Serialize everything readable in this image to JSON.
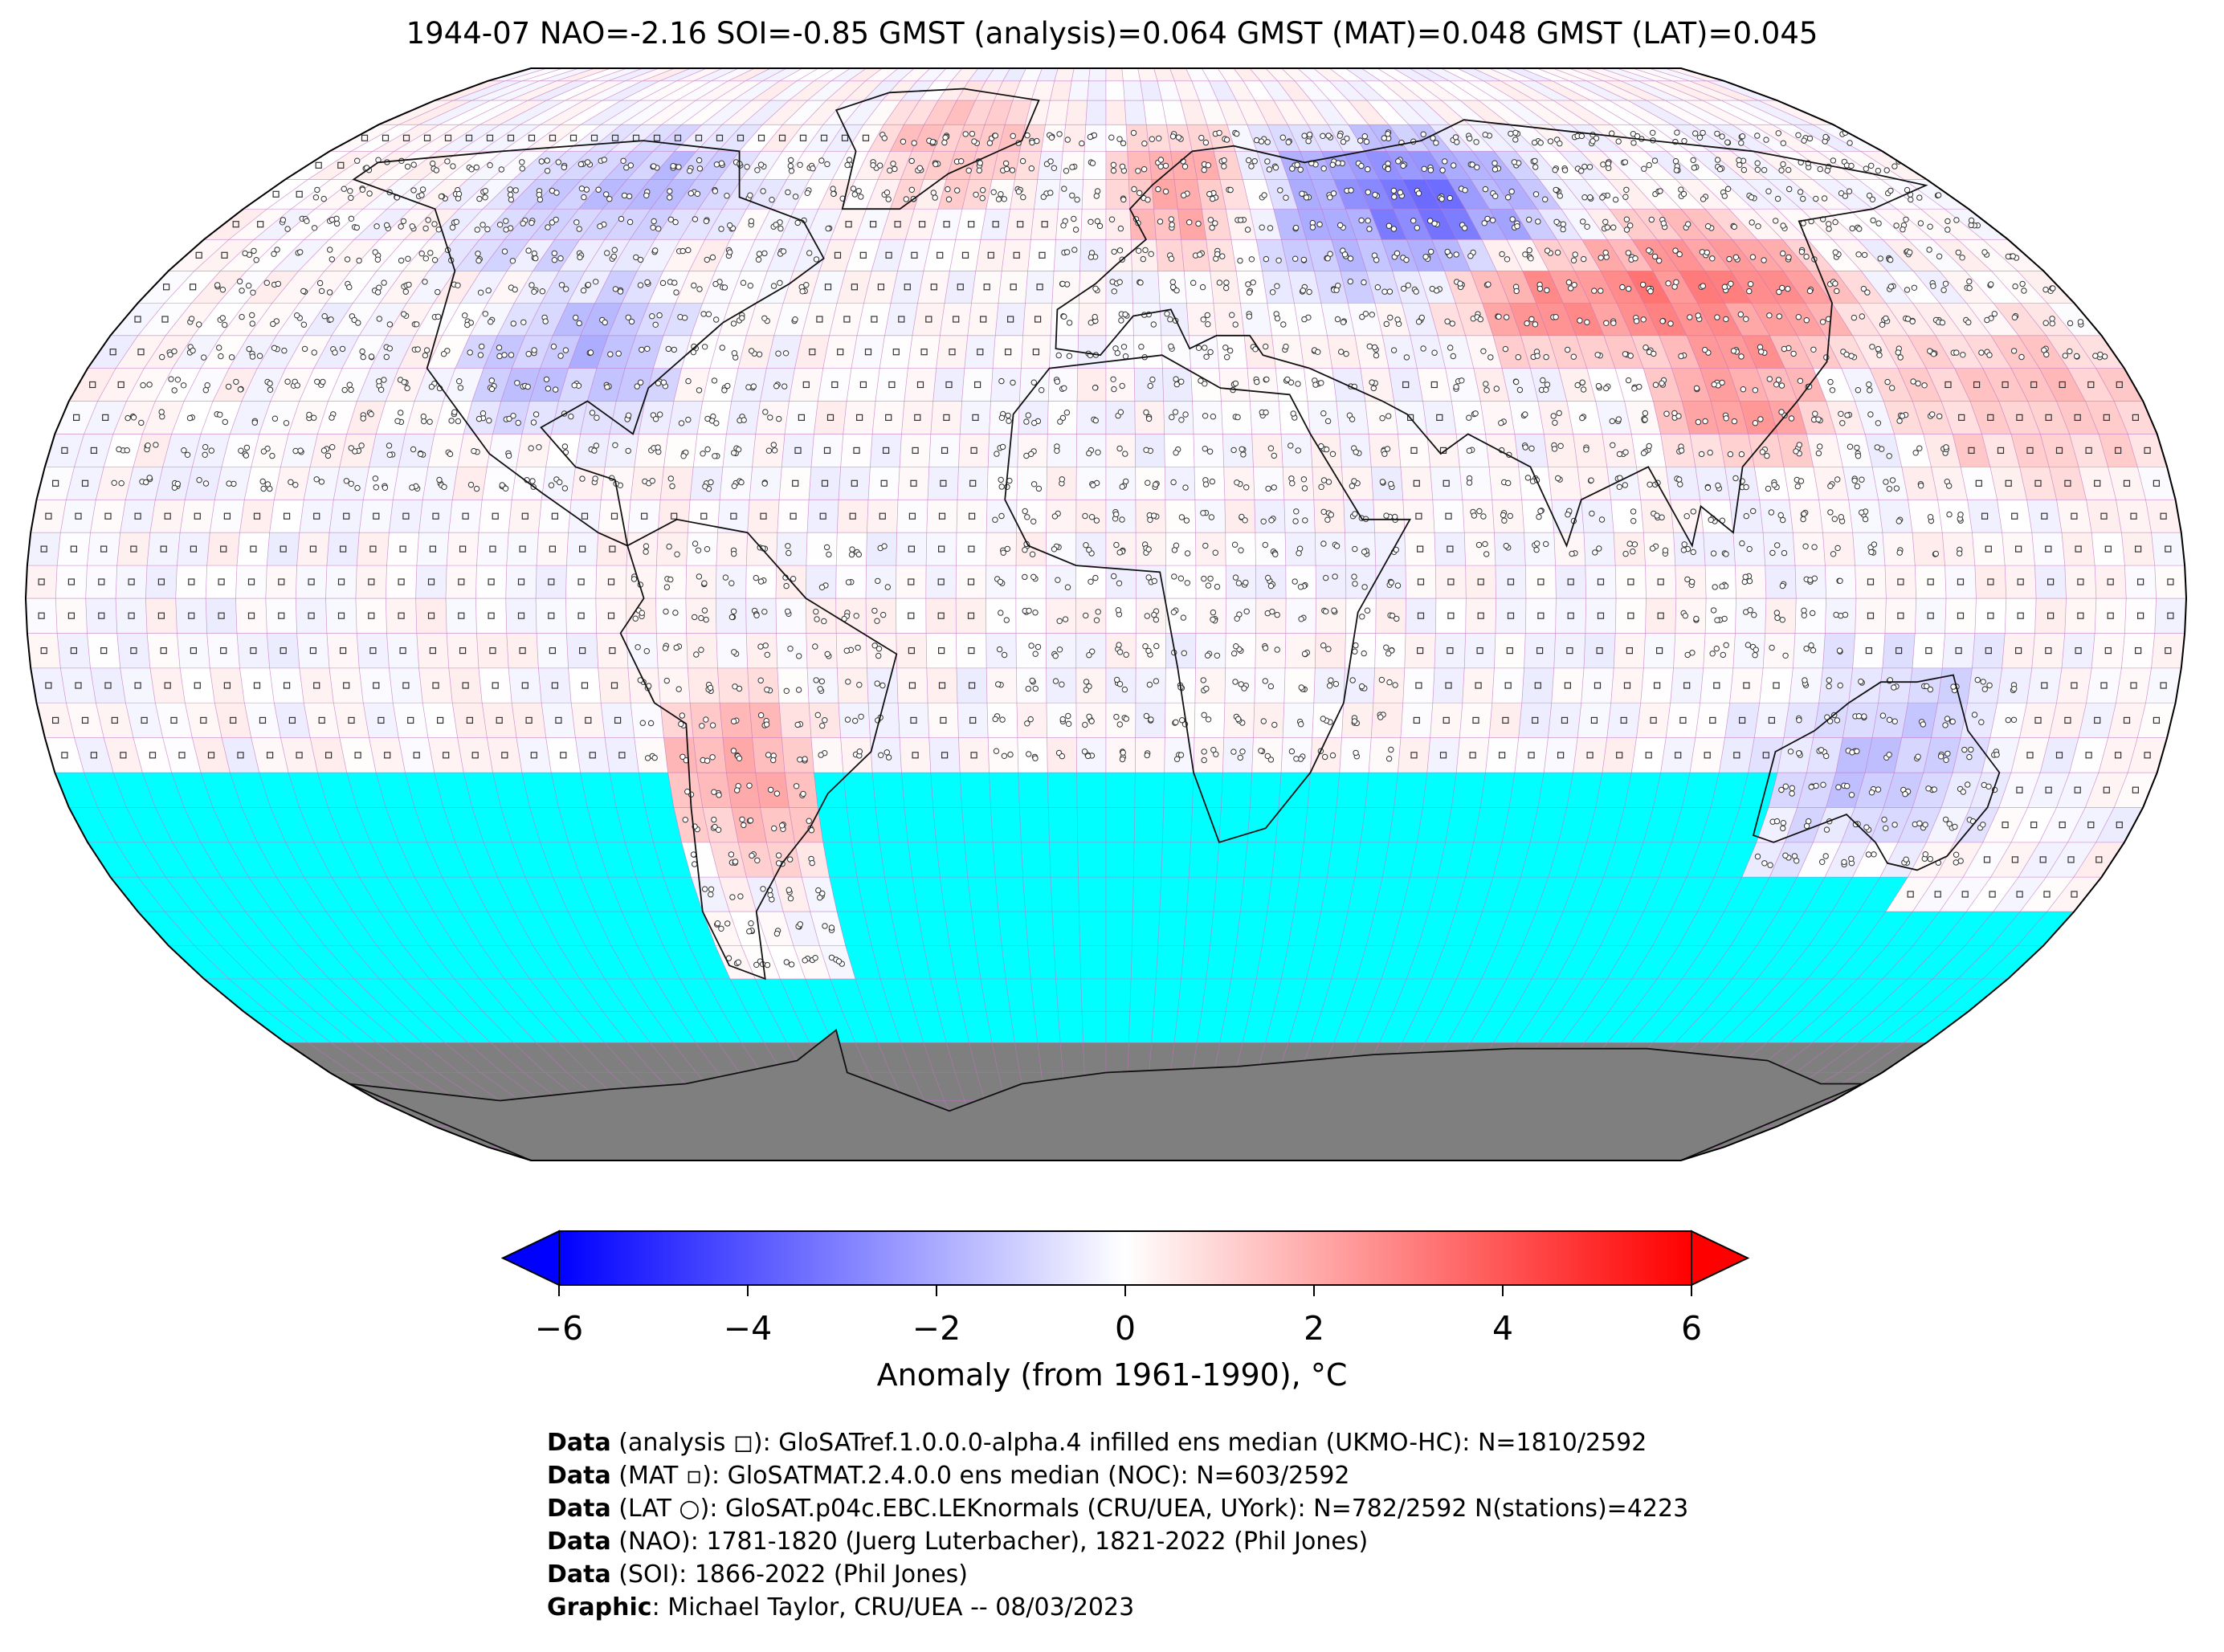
{
  "title": "1944-07 NAO=-2.16 SOI=-0.85 GMST (analysis)=0.064 GMST (MAT)=0.048 GMST (LAT)=0.045",
  "colors": {
    "cold": "#0000ff",
    "neutral": "#ffffff",
    "warm": "#ff0000",
    "missing": "#00ffff",
    "land_ice": "#7f7f7f",
    "gridlines": "#c070c0"
  },
  "colorbar": {
    "min": -6,
    "max": 6,
    "ticks": [
      "−6",
      "−4",
      "−2",
      "0",
      "2",
      "4",
      "6"
    ],
    "tick_values": [
      -6,
      -4,
      -2,
      0,
      2,
      4,
      6
    ],
    "label": "Anomaly (from 1961-1990), °C",
    "extend": "both"
  },
  "map": {
    "projection": "Robinson",
    "grid_resolution_deg": 5,
    "missing_region": "Southern Ocean south of ~25°S",
    "anomaly_regions": [
      {
        "name": "Eastern Europe / Western Russia",
        "lon": [
          30,
          70
        ],
        "lat": [
          50,
          70
        ],
        "value": -2.0
      },
      {
        "name": "Western Siberia",
        "lon": [
          60,
          90
        ],
        "lat": [
          55,
          70
        ],
        "value": -2.2
      },
      {
        "name": "Central Asia",
        "lon": [
          70,
          100
        ],
        "lat": [
          40,
          50
        ],
        "value": 2.5
      },
      {
        "name": "East Asia",
        "lon": [
          100,
          135
        ],
        "lat": [
          40,
          55
        ],
        "value": 2.8
      },
      {
        "name": "China",
        "lon": [
          100,
          120
        ],
        "lat": [
          25,
          35
        ],
        "value": 2.3
      },
      {
        "name": "Scandinavia",
        "lon": [
          5,
          30
        ],
        "lat": [
          55,
          70
        ],
        "value": 2.0
      },
      {
        "name": "Greenland",
        "lon": [
          -50,
          -20
        ],
        "lat": [
          65,
          80
        ],
        "value": 1.5
      },
      {
        "name": "Central USA",
        "lon": [
          -110,
          -80
        ],
        "lat": [
          30,
          45
        ],
        "value": -1.5
      },
      {
        "name": "Canada",
        "lon": [
          -130,
          -80
        ],
        "lat": [
          55,
          70
        ],
        "value": -1.5
      },
      {
        "name": "South America",
        "lon": [
          -70,
          -55
        ],
        "lat": [
          -35,
          -15
        ],
        "value": 2.0
      },
      {
        "name": "Australia",
        "lon": [
          115,
          150
        ],
        "lat": [
          -35,
          -10
        ],
        "value": -1.2
      },
      {
        "name": "North Pacific",
        "lon": [
          140,
          180
        ],
        "lat": [
          20,
          40
        ],
        "value": 1.4
      }
    ]
  },
  "credits": [
    {
      "bold": "Data",
      "text": " (analysis ◻): GloSATref.1.0.0.0-alpha.4 infilled ens median (UKMO-HC): N=1810/2592"
    },
    {
      "bold": "Data",
      "text": " (MAT ▫): GloSATMAT.2.4.0.0 ens median (NOC): N=603/2592"
    },
    {
      "bold": "Data",
      "text": " (LAT ○): GloSAT.p04c.EBC.LEKnormals (CRU/UEA, UYork): N=782/2592 N(stations)=4223"
    },
    {
      "bold": "Data",
      "text": " (NAO): 1781-1820 (Juerg Luterbacher), 1821-2022 (Phil Jones)"
    },
    {
      "bold": "Data",
      "text": " (SOI): 1866-2022 (Phil Jones)"
    },
    {
      "bold": "Graphic",
      "text": ": Michael Taylor, CRU/UEA -- 08/03/2023"
    }
  ]
}
